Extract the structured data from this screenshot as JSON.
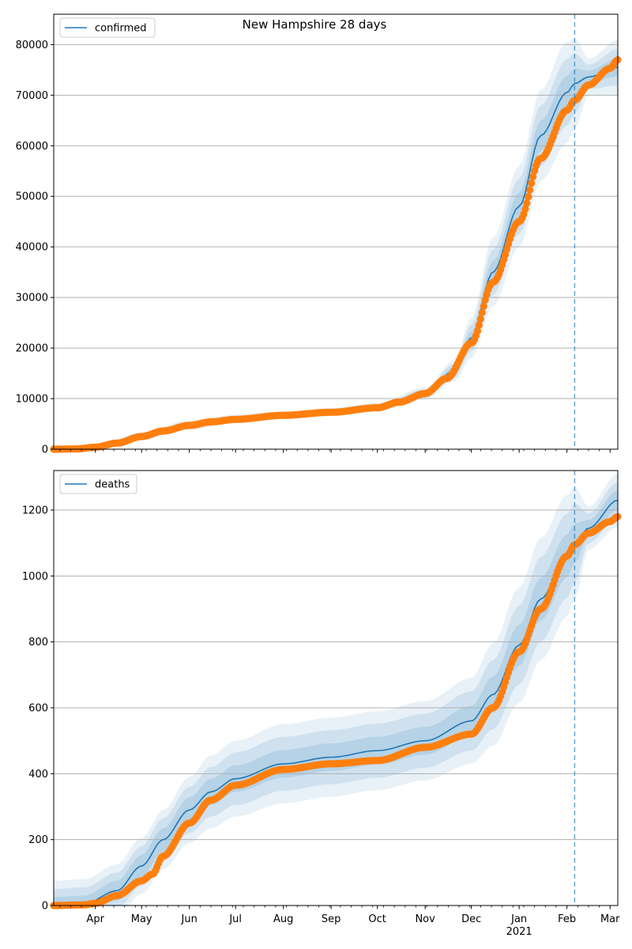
{
  "title": "New Hampshire 28 days",
  "chart_data": [
    {
      "type": "line",
      "legend": {
        "label": "confirmed",
        "placement": "top-left"
      },
      "ylim": [
        0,
        86000
      ],
      "yticks": [
        0,
        10000,
        20000,
        30000,
        40000,
        50000,
        60000,
        70000,
        80000
      ],
      "ytick_labels": [
        "0",
        "10000",
        "20000",
        "30000",
        "40000",
        "50000",
        "60000",
        "70000",
        "80000"
      ],
      "grid": "y",
      "forecast_start": "2021-02-06",
      "model_series": [
        {
          "x": "2020-03-05",
          "y": 0,
          "b1": 0,
          "b2": 0,
          "b3": 100
        },
        {
          "x": "2020-04-01",
          "y": 300,
          "b1": 150,
          "b2": 280,
          "b3": 420
        },
        {
          "x": "2020-05-01",
          "y": 2600,
          "b1": 250,
          "b2": 500,
          "b3": 750
        },
        {
          "x": "2020-06-01",
          "y": 4800,
          "b1": 300,
          "b2": 600,
          "b3": 900
        },
        {
          "x": "2020-07-01",
          "y": 6000,
          "b1": 300,
          "b2": 550,
          "b3": 850
        },
        {
          "x": "2020-08-01",
          "y": 6700,
          "b1": 250,
          "b2": 500,
          "b3": 750
        },
        {
          "x": "2020-09-01",
          "y": 7400,
          "b1": 250,
          "b2": 500,
          "b3": 750
        },
        {
          "x": "2020-10-01",
          "y": 8300,
          "b1": 300,
          "b2": 550,
          "b3": 850
        },
        {
          "x": "2020-11-01",
          "y": 11000,
          "b1": 400,
          "b2": 800,
          "b3": 1200
        },
        {
          "x": "2020-11-20",
          "y": 15500,
          "b1": 700,
          "b2": 1400,
          "b3": 2100
        },
        {
          "x": "2020-12-01",
          "y": 22000,
          "b1": 1300,
          "b2": 2600,
          "b3": 4000
        },
        {
          "x": "2020-12-15",
          "y": 35000,
          "b1": 2200,
          "b2": 4500,
          "b3": 6800
        },
        {
          "x": "2021-01-01",
          "y": 48000,
          "b1": 2700,
          "b2": 5500,
          "b3": 8000
        },
        {
          "x": "2021-01-15",
          "y": 62000,
          "b1": 3000,
          "b2": 6000,
          "b3": 9000
        },
        {
          "x": "2021-02-01",
          "y": 70500,
          "b1": 3300,
          "b2": 6600,
          "b3": 10000
        },
        {
          "x": "2021-02-06",
          "y": 72300,
          "b1": 3000,
          "b2": 6000,
          "b3": 9000
        },
        {
          "x": "2021-02-15",
          "y": 73600,
          "b1": 1200,
          "b2": 2400,
          "b3": 3600
        },
        {
          "x": "2021-03-06",
          "y": 75500,
          "b1": 1800,
          "b2": 3600,
          "b3": 5400
        }
      ],
      "observed_series": [
        {
          "x": "2020-03-05",
          "y": 0
        },
        {
          "x": "2020-03-20",
          "y": 50
        },
        {
          "x": "2020-04-01",
          "y": 400
        },
        {
          "x": "2020-04-15",
          "y": 1200
        },
        {
          "x": "2020-05-01",
          "y": 2500
        },
        {
          "x": "2020-05-15",
          "y": 3600
        },
        {
          "x": "2020-06-01",
          "y": 4700
        },
        {
          "x": "2020-06-15",
          "y": 5400
        },
        {
          "x": "2020-07-01",
          "y": 5900
        },
        {
          "x": "2020-08-01",
          "y": 6700
        },
        {
          "x": "2020-09-01",
          "y": 7300
        },
        {
          "x": "2020-10-01",
          "y": 8200
        },
        {
          "x": "2020-10-15",
          "y": 9300
        },
        {
          "x": "2020-11-01",
          "y": 11000
        },
        {
          "x": "2020-11-15",
          "y": 14000
        },
        {
          "x": "2020-12-01",
          "y": 21000
        },
        {
          "x": "2020-12-15",
          "y": 33000
        },
        {
          "x": "2021-01-01",
          "y": 45000
        },
        {
          "x": "2021-01-15",
          "y": 57500
        },
        {
          "x": "2021-02-01",
          "y": 67000
        },
        {
          "x": "2021-02-06",
          "y": 69000
        },
        {
          "x": "2021-02-15",
          "y": 72000
        },
        {
          "x": "2021-03-01",
          "y": 75300
        },
        {
          "x": "2021-03-06",
          "y": 77000
        }
      ]
    },
    {
      "type": "line",
      "legend": {
        "label": "deaths",
        "placement": "top-left"
      },
      "ylim": [
        0,
        1320
      ],
      "yticks": [
        0,
        200,
        400,
        600,
        800,
        1000,
        1200
      ],
      "ytick_labels": [
        "0",
        "200",
        "400",
        "600",
        "800",
        "1000",
        "1200"
      ],
      "grid": "y",
      "forecast_start": "2021-02-06",
      "model_series": [
        {
          "x": "2020-03-05",
          "y": 0,
          "b1": 25,
          "b2": 50,
          "b3": 75
        },
        {
          "x": "2020-03-25",
          "y": 5,
          "b1": 25,
          "b2": 50,
          "b3": 75
        },
        {
          "x": "2020-04-15",
          "y": 45,
          "b1": 30,
          "b2": 55,
          "b3": 80
        },
        {
          "x": "2020-05-01",
          "y": 120,
          "b1": 33,
          "b2": 60,
          "b3": 85
        },
        {
          "x": "2020-05-15",
          "y": 200,
          "b1": 35,
          "b2": 65,
          "b3": 90
        },
        {
          "x": "2020-06-01",
          "y": 290,
          "b1": 38,
          "b2": 70,
          "b3": 100
        },
        {
          "x": "2020-06-15",
          "y": 345,
          "b1": 40,
          "b2": 75,
          "b3": 110
        },
        {
          "x": "2020-07-01",
          "y": 385,
          "b1": 40,
          "b2": 80,
          "b3": 115
        },
        {
          "x": "2020-08-01",
          "y": 430,
          "b1": 42,
          "b2": 82,
          "b3": 120
        },
        {
          "x": "2020-09-01",
          "y": 450,
          "b1": 42,
          "b2": 82,
          "b3": 120
        },
        {
          "x": "2020-10-01",
          "y": 470,
          "b1": 42,
          "b2": 82,
          "b3": 120
        },
        {
          "x": "2020-11-01",
          "y": 500,
          "b1": 42,
          "b2": 82,
          "b3": 120
        },
        {
          "x": "2020-12-01",
          "y": 560,
          "b1": 45,
          "b2": 90,
          "b3": 130
        },
        {
          "x": "2020-12-15",
          "y": 640,
          "b1": 55,
          "b2": 105,
          "b3": 155
        },
        {
          "x": "2021-01-01",
          "y": 790,
          "b1": 62,
          "b2": 120,
          "b3": 175
        },
        {
          "x": "2021-01-15",
          "y": 930,
          "b1": 65,
          "b2": 128,
          "b3": 185
        },
        {
          "x": "2021-02-01",
          "y": 1060,
          "b1": 65,
          "b2": 128,
          "b3": 185
        },
        {
          "x": "2021-02-06",
          "y": 1100,
          "b1": 60,
          "b2": 120,
          "b3": 170
        },
        {
          "x": "2021-02-15",
          "y": 1145,
          "b1": 25,
          "b2": 45,
          "b3": 65
        },
        {
          "x": "2021-03-06",
          "y": 1230,
          "b1": 30,
          "b2": 55,
          "b3": 80
        }
      ],
      "observed_series": [
        {
          "x": "2020-03-05",
          "y": 0
        },
        {
          "x": "2020-03-25",
          "y": 2
        },
        {
          "x": "2020-04-01",
          "y": 7
        },
        {
          "x": "2020-04-15",
          "y": 30
        },
        {
          "x": "2020-05-01",
          "y": 75
        },
        {
          "x": "2020-05-08",
          "y": 95
        },
        {
          "x": "2020-05-15",
          "y": 150
        },
        {
          "x": "2020-06-01",
          "y": 250
        },
        {
          "x": "2020-06-15",
          "y": 320
        },
        {
          "x": "2020-07-01",
          "y": 365
        },
        {
          "x": "2020-08-01",
          "y": 413
        },
        {
          "x": "2020-09-01",
          "y": 430
        },
        {
          "x": "2020-10-01",
          "y": 440
        },
        {
          "x": "2020-11-01",
          "y": 480
        },
        {
          "x": "2020-12-01",
          "y": 520
        },
        {
          "x": "2020-12-15",
          "y": 600
        },
        {
          "x": "2021-01-01",
          "y": 770
        },
        {
          "x": "2021-01-15",
          "y": 900
        },
        {
          "x": "2021-02-01",
          "y": 1060
        },
        {
          "x": "2021-02-06",
          "y": 1095
        },
        {
          "x": "2021-02-15",
          "y": 1130
        },
        {
          "x": "2021-03-01",
          "y": 1165
        },
        {
          "x": "2021-03-06",
          "y": 1180
        }
      ]
    }
  ],
  "x_axis": {
    "start": "2020-03-05",
    "end": "2021-03-06",
    "major_ticks": [
      {
        "date": "2020-04-01",
        "label": "Apr"
      },
      {
        "date": "2020-05-01",
        "label": "May"
      },
      {
        "date": "2020-06-01",
        "label": "Jun"
      },
      {
        "date": "2020-07-01",
        "label": "Jul"
      },
      {
        "date": "2020-08-01",
        "label": "Aug"
      },
      {
        "date": "2020-09-01",
        "label": "Sep"
      },
      {
        "date": "2020-10-01",
        "label": "Oct"
      },
      {
        "date": "2020-11-01",
        "label": "Nov"
      },
      {
        "date": "2020-12-01",
        "label": "Dec"
      },
      {
        "date": "2021-01-01",
        "label": "Jan",
        "sublabel": "2021"
      },
      {
        "date": "2021-02-01",
        "label": "Feb"
      },
      {
        "date": "2021-03-01",
        "label": "Mar"
      }
    ]
  },
  "colors": {
    "model_line": "#1f77b4",
    "observed": "#ff7f0e",
    "band": "#1f77b4",
    "grid": "#b0b0b0",
    "forecast_line": "#1f77b4"
  }
}
